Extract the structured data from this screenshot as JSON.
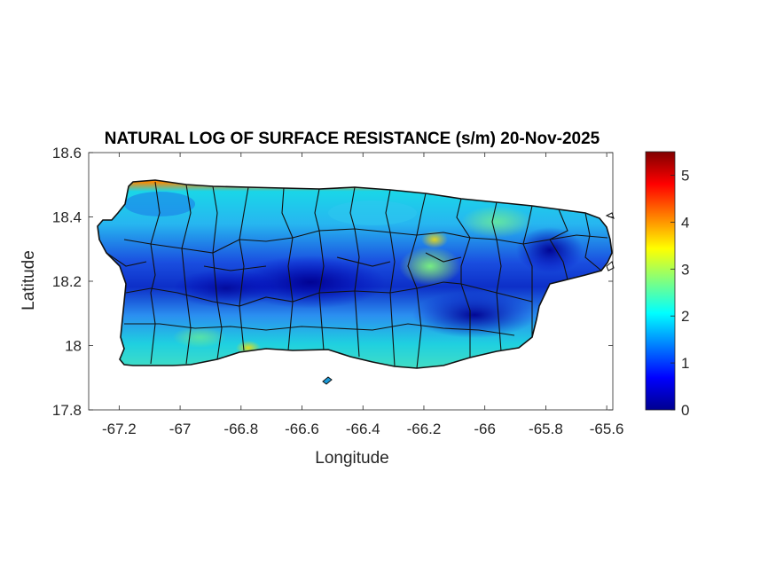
{
  "title": "NATURAL LOG OF SURFACE RESISTANCE (s/m) 20-Nov-2025",
  "xlabel": "Longitude",
  "ylabel": "Latitude",
  "x_ticks": [
    "-67.2",
    "-67",
    "-66.8",
    "-66.6",
    "-66.4",
    "-66.2",
    "-66",
    "-65.8",
    "-65.6"
  ],
  "y_ticks": [
    "18.6",
    "18.4",
    "18.2",
    "18",
    "17.8"
  ],
  "colorbar": {
    "colormap": "jet",
    "range": [
      0,
      5.5
    ],
    "ticks": [
      "0",
      "1",
      "2",
      "3",
      "4",
      "5"
    ]
  },
  "map": {
    "region": "Puerto Rico",
    "lon_range": [
      -67.3,
      -65.58
    ],
    "lat_range": [
      17.8,
      18.6
    ],
    "field": "natural log of surface resistance",
    "boundaries": "municipality outlines (black)"
  }
}
